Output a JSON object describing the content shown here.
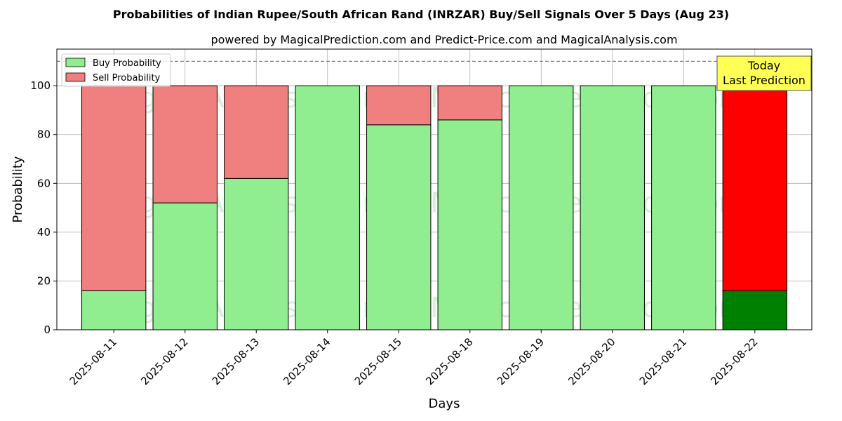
{
  "chart_data": {
    "type": "bar",
    "title": "Probabilities of Indian Rupee/South African Rand (INRZAR) Buy/Sell Signals Over 5 Days (Aug 23)",
    "subtitle": "powered by MagicalPrediction.com and Predict-Price.com and MagicalAnalysis.com",
    "xlabel": "Days",
    "ylabel": "Probability",
    "ylim": [
      0,
      115
    ],
    "yticks": [
      0,
      20,
      40,
      60,
      80,
      100
    ],
    "grid": true,
    "stacked": true,
    "categories": [
      "2025-08-11",
      "2025-08-12",
      "2025-08-13",
      "2025-08-14",
      "2025-08-15",
      "2025-08-18",
      "2025-08-19",
      "2025-08-20",
      "2025-08-21",
      "2025-08-22"
    ],
    "series": [
      {
        "name": "Buy Probability",
        "values": [
          16,
          52,
          62,
          100,
          84,
          86,
          100,
          100,
          100,
          16
        ],
        "color": "#90ee90",
        "highlight_color": "#008000"
      },
      {
        "name": "Sell Probability",
        "values": [
          84,
          48,
          38,
          0,
          16,
          14,
          0,
          0,
          0,
          84
        ],
        "color": "#f08080",
        "highlight_color": "#ff0000"
      }
    ],
    "highlight_index": 9,
    "reference_line": {
      "y": 110,
      "style": "dashed",
      "color": "#808080"
    },
    "legend": {
      "placement": "top-left"
    },
    "annotation": {
      "lines": [
        "Today",
        "Last Prediction"
      ],
      "background": "#ffff55"
    },
    "watermarks": [
      "MagicalAnalysis.com",
      "MagicalPrediction.com"
    ]
  }
}
